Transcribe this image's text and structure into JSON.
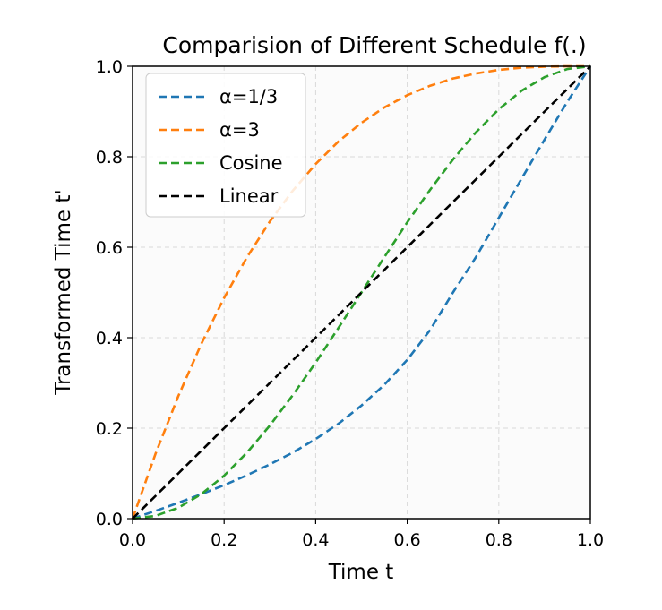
{
  "chart_data": {
    "type": "line",
    "title": "Comparision of Different Schedule f(.)",
    "xlabel": "Time t",
    "ylabel": "Transformed Time t'",
    "xlim": [
      0,
      1
    ],
    "ylim": [
      0,
      1
    ],
    "grid": true,
    "legend_position": "upper-left",
    "xticks": [
      0.0,
      0.2,
      0.4,
      0.6,
      0.8,
      1.0
    ],
    "yticks": [
      0.0,
      0.2,
      0.4,
      0.6,
      0.8,
      1.0
    ],
    "xtick_labels": [
      "0.0",
      "0.2",
      "0.4",
      "0.6",
      "0.8",
      "1.0"
    ],
    "ytick_labels": [
      "0.0",
      "0.2",
      "0.4",
      "0.6",
      "0.8",
      "1.0"
    ],
    "x": [
      0.0,
      0.05,
      0.1,
      0.15,
      0.2,
      0.25,
      0.3,
      0.35,
      0.4,
      0.45,
      0.5,
      0.55,
      0.6,
      0.65,
      0.7,
      0.75,
      0.8,
      0.85,
      0.9,
      0.95,
      1.0
    ],
    "series": [
      {
        "name": "α=1/3",
        "color": "#1f77b4",
        "values": [
          0.0,
          0.017,
          0.035,
          0.054,
          0.074,
          0.096,
          0.12,
          0.146,
          0.176,
          0.21,
          0.25,
          0.296,
          0.351,
          0.417,
          0.5,
          0.578,
          0.665,
          0.752,
          0.838,
          0.922,
          1.0
        ]
      },
      {
        "name": "α=3",
        "color": "#ff7f0e",
        "values": [
          0.0,
          0.143,
          0.271,
          0.386,
          0.488,
          0.578,
          0.657,
          0.725,
          0.784,
          0.834,
          0.875,
          0.909,
          0.936,
          0.957,
          0.973,
          0.984,
          0.992,
          0.997,
          0.999,
          1.0,
          1.0
        ]
      },
      {
        "name": "Cosine",
        "color": "#2ca02c",
        "values": [
          0.0,
          0.006,
          0.024,
          0.054,
          0.095,
          0.146,
          0.206,
          0.273,
          0.345,
          0.422,
          0.5,
          0.578,
          0.655,
          0.727,
          0.794,
          0.854,
          0.905,
          0.946,
          0.976,
          0.994,
          1.0
        ]
      },
      {
        "name": "Linear",
        "color": "#000000",
        "values": [
          0.0,
          0.05,
          0.1,
          0.15,
          0.2,
          0.25,
          0.3,
          0.35,
          0.4,
          0.45,
          0.5,
          0.55,
          0.6,
          0.65,
          0.7,
          0.75,
          0.8,
          0.85,
          0.9,
          0.95,
          1.0
        ]
      }
    ]
  }
}
